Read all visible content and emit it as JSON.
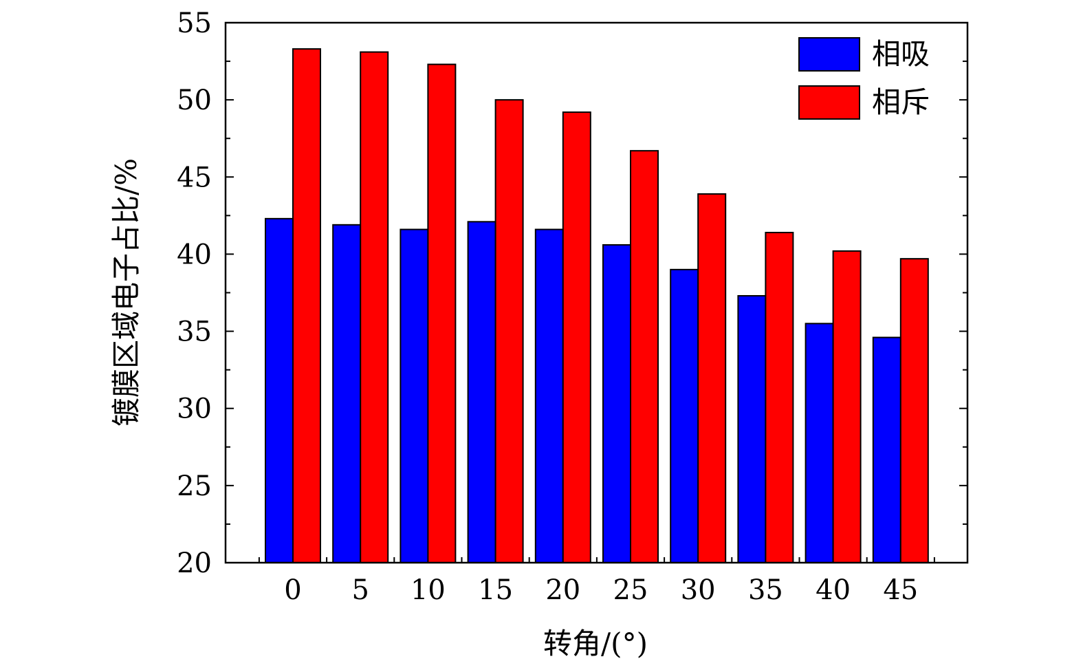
{
  "chart_data": {
    "type": "bar",
    "title": "",
    "xlabel": "转角/(°)",
    "ylabel": "镀膜区域电子占比/%",
    "categories": [
      "0",
      "5",
      "10",
      "15",
      "20",
      "25",
      "30",
      "35",
      "40",
      "45"
    ],
    "series": [
      {
        "name": "相吸",
        "color": "#0000ff",
        "values": [
          42.3,
          41.9,
          41.6,
          42.1,
          41.6,
          40.6,
          39.0,
          37.3,
          35.5,
          34.6
        ]
      },
      {
        "name": "相斥",
        "color": "#ff0000",
        "values": [
          53.3,
          53.1,
          52.3,
          50.0,
          49.2,
          46.7,
          43.9,
          41.4,
          40.2,
          39.7
        ]
      }
    ],
    "ylim": [
      20,
      55
    ],
    "yticks": [
      20,
      25,
      30,
      35,
      40,
      45,
      50,
      55
    ],
    "grid": false,
    "legend_position": "top-right"
  }
}
